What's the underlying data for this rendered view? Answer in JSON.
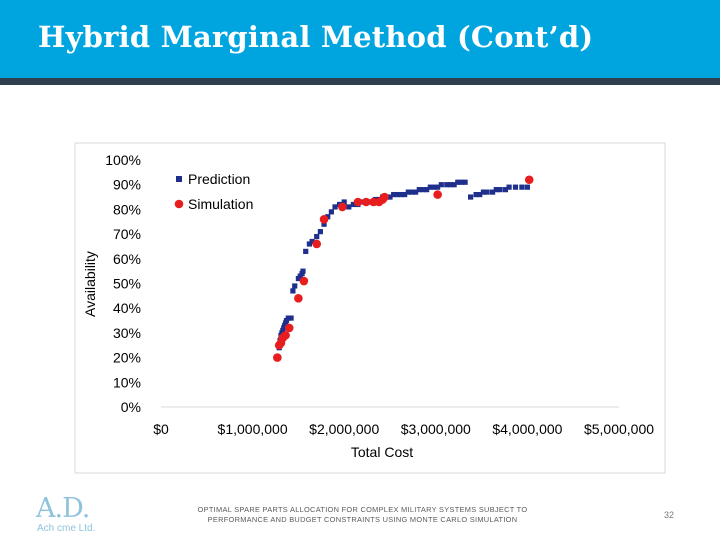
{
  "slide": {
    "title": "Hybrid Marginal Method (Cont’d)",
    "footer_line1": "OPTIMAL SPARE PARTS ALLOCATION FOR COMPLEX MILITARY SYSTEMS SUBJECT TO",
    "footer_line2": "PERFORMANCE AND BUDGET CONSTRAINTS USING MONTE CARLO SIMULATION",
    "page_number": "32",
    "logo_mark": "A.D.",
    "logo_sub": "Ach cme Ltd.",
    "title_bar_color": "#00A5E0",
    "title_underline_color": "#2f3f4d"
  },
  "chart_data": {
    "type": "scatter",
    "title": "",
    "xlabel": "Total Cost",
    "ylabel": "Availability",
    "xlim": [
      0,
      5000000
    ],
    "ylim": [
      0,
      1
    ],
    "xticks": [
      0,
      1000000,
      2000000,
      3000000,
      4000000,
      5000000
    ],
    "xtick_labels": [
      "$0",
      "$1,000,000",
      "$2,000,000",
      "$3,000,000",
      "$4,000,000",
      "$5,000,000"
    ],
    "yticks": [
      0,
      0.1,
      0.2,
      0.3,
      0.4,
      0.5,
      0.6,
      0.7,
      0.8,
      0.9,
      1.0
    ],
    "ytick_labels": [
      "0%",
      "10%",
      "20%",
      "30%",
      "40%",
      "50%",
      "60%",
      "70%",
      "80%",
      "90%",
      "100%"
    ],
    "grid": false,
    "legend_position": "top-left",
    "series": [
      {
        "name": "Prediction",
        "marker": "square",
        "color": "#1F2F8C",
        "x": [
          1280000,
          1290000,
          1300000,
          1310000,
          1320000,
          1330000,
          1340000,
          1350000,
          1360000,
          1370000,
          1390000,
          1420000,
          1440000,
          1460000,
          1500000,
          1520000,
          1540000,
          1550000,
          1580000,
          1620000,
          1650000,
          1700000,
          1740000,
          1780000,
          1820000,
          1860000,
          1900000,
          1950000,
          2000000,
          2050000,
          2100000,
          2150000,
          2200000,
          2250000,
          2300000,
          2340000,
          2380000,
          2420000,
          2460000,
          2500000,
          2540000,
          2580000,
          2620000,
          2660000,
          2700000,
          2740000,
          2780000,
          2820000,
          2860000,
          2900000,
          2940000,
          2980000,
          3020000,
          3060000,
          3120000,
          3160000,
          3200000,
          3240000,
          3280000,
          3320000,
          3380000,
          3440000,
          3480000,
          3520000,
          3560000,
          3620000,
          3660000,
          3700000,
          3760000,
          3800000,
          3870000,
          3940000,
          4000000
        ],
        "y": [
          0.2,
          0.24,
          0.27,
          0.29,
          0.3,
          0.31,
          0.32,
          0.33,
          0.34,
          0.35,
          0.36,
          0.36,
          0.47,
          0.49,
          0.52,
          0.53,
          0.54,
          0.55,
          0.63,
          0.66,
          0.67,
          0.69,
          0.71,
          0.74,
          0.77,
          0.79,
          0.81,
          0.82,
          0.83,
          0.81,
          0.82,
          0.82,
          0.83,
          0.83,
          0.83,
          0.84,
          0.84,
          0.85,
          0.85,
          0.85,
          0.86,
          0.86,
          0.86,
          0.86,
          0.87,
          0.87,
          0.87,
          0.88,
          0.88,
          0.88,
          0.89,
          0.89,
          0.89,
          0.9,
          0.9,
          0.9,
          0.9,
          0.91,
          0.91,
          0.91,
          0.85,
          0.86,
          0.86,
          0.87,
          0.87,
          0.87,
          0.88,
          0.88,
          0.88,
          0.89,
          0.89,
          0.89,
          0.89
        ]
      },
      {
        "name": "Simulation",
        "marker": "circle",
        "color": "#E81D1D",
        "x": [
          1270000,
          1290000,
          1310000,
          1330000,
          1360000,
          1400000,
          1500000,
          1560000,
          1700000,
          1780000,
          1980000,
          2150000,
          2240000,
          2320000,
          2380000,
          2420000,
          2440000,
          3020000,
          4020000
        ],
        "y": [
          0.2,
          0.25,
          0.26,
          0.28,
          0.29,
          0.32,
          0.44,
          0.51,
          0.66,
          0.76,
          0.81,
          0.83,
          0.83,
          0.83,
          0.83,
          0.84,
          0.85,
          0.86,
          0.92
        ]
      }
    ]
  }
}
